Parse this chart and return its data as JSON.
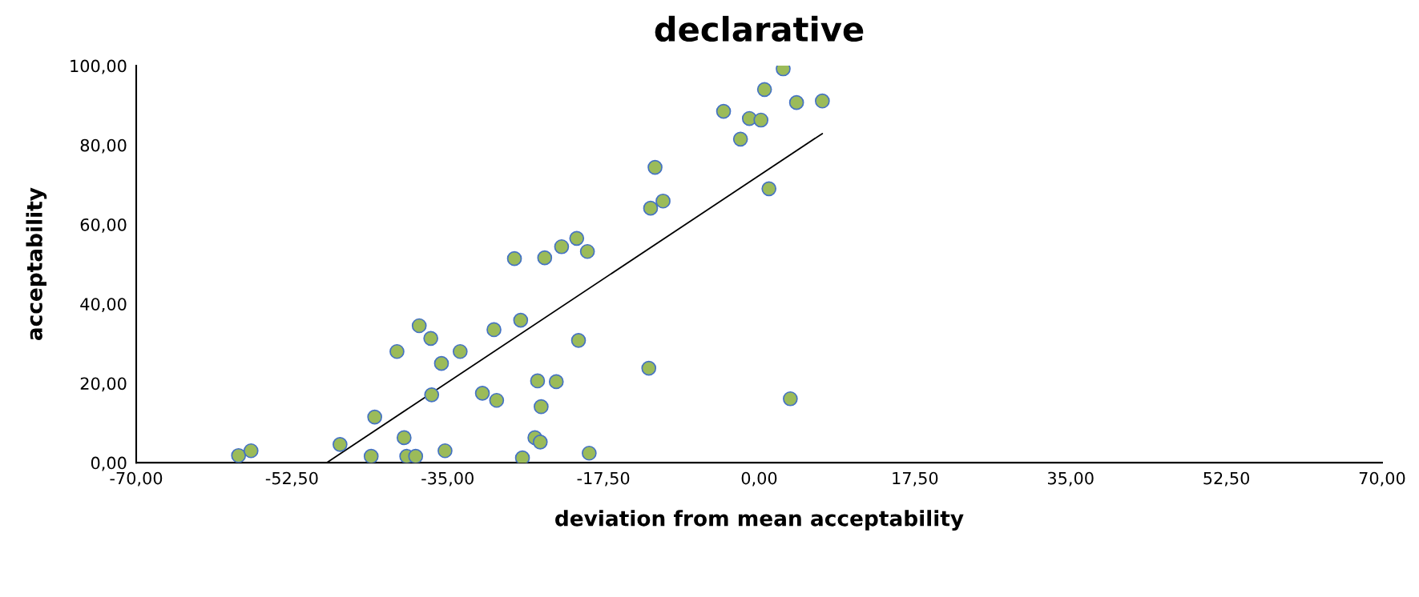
{
  "chart_data": {
    "type": "scatter",
    "title": "declarative",
    "xlabel": "deviation from mean acceptability",
    "ylabel": "acceptability",
    "xlim": [
      -70,
      70
    ],
    "ylim": [
      0,
      100
    ],
    "xticks": [
      {
        "value": -70,
        "label": "-70,00"
      },
      {
        "value": -52.5,
        "label": "-52,50"
      },
      {
        "value": -35,
        "label": "-35,00"
      },
      {
        "value": -17.5,
        "label": "-17,50"
      },
      {
        "value": 0,
        "label": "0,00"
      },
      {
        "value": 17.5,
        "label": "17,50"
      },
      {
        "value": 35,
        "label": "35,00"
      },
      {
        "value": 52.5,
        "label": "52,50"
      },
      {
        "value": 70,
        "label": "70,00"
      }
    ],
    "yticks": [
      {
        "value": 0,
        "label": "0,00"
      },
      {
        "value": 20,
        "label": "20,00"
      },
      {
        "value": 40,
        "label": "40,00"
      },
      {
        "value": 60,
        "label": "60,00"
      },
      {
        "value": 80,
        "label": "80,00"
      },
      {
        "value": 100,
        "label": "100,00"
      }
    ],
    "grid": false,
    "legend": false,
    "marker": "circle",
    "series": [
      {
        "color": "#9bbb59",
        "x": [
          -58.5,
          -57.1,
          -47.1,
          -43.6,
          -43.2,
          -40.7,
          -39.9,
          -39.6,
          -38.6,
          -38.2,
          -36.9,
          -36.8,
          -35.7,
          -35.3,
          -33.6,
          -31.1,
          -29.8,
          -29.5,
          -27.5,
          -26.8,
          -26.6,
          -25.2,
          -24.9,
          -24.6,
          -24.5,
          -24.1,
          -22.8,
          -22.2,
          -20.5,
          -20.3,
          -19.3,
          -19.1,
          -12.4,
          -12.2,
          -11.7,
          -10.8,
          -4.0,
          -2.1,
          -1.1,
          0.2,
          0.6,
          1.1,
          2.7,
          3.5,
          4.2,
          7.1
        ],
        "values": [
          1.8,
          3.0,
          4.6,
          1.6,
          11.5,
          28.0,
          6.3,
          1.6,
          1.6,
          34.5,
          31.3,
          17.1,
          25.0,
          3.0,
          28.0,
          17.5,
          33.5,
          15.7,
          51.4,
          35.9,
          1.2,
          6.3,
          20.6,
          5.2,
          14.1,
          51.6,
          20.4,
          54.4,
          56.5,
          30.8,
          53.2,
          2.4,
          23.8,
          64.1,
          74.4,
          65.9,
          88.5,
          81.5,
          86.7,
          86.3,
          94.0,
          69.0,
          99.2,
          16.1,
          90.7,
          91.1
        ]
      },
      {
        "type": "line",
        "color": "#000000",
        "marker": "none",
        "line_style": "solid",
        "x": [
          -48.6,
          7.1
        ],
        "values": [
          0,
          82.9
        ]
      }
    ]
  }
}
